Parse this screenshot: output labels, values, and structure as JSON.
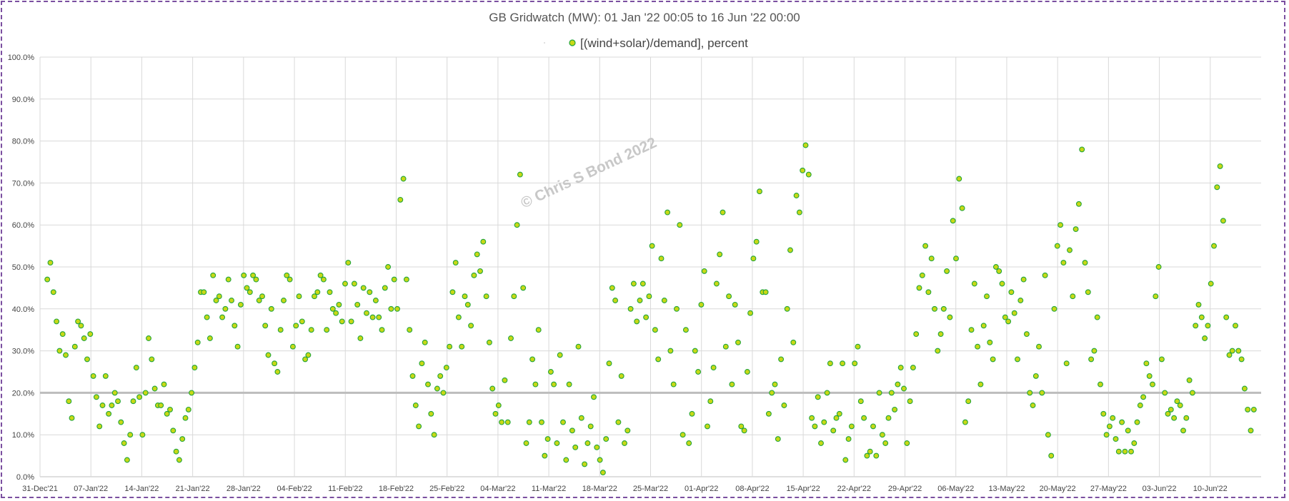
{
  "chart_data": {
    "type": "scatter",
    "title": "GB Gridwatch (MW):   01 Jan '22 00:05 to 16 Jun '22 00:00",
    "legend_placement": "top-center",
    "grid": true,
    "series": [
      {
        "name": "[(wind+solar)/demand], percent",
        "marker_fill": "#c8d816",
        "marker_edge": "#22a53a",
        "x_start": "2022-01-01",
        "x_end": "2022-06-16",
        "values": [
          47,
          51,
          44,
          37,
          30,
          34,
          29,
          18,
          14,
          31,
          37,
          36,
          33,
          28,
          34,
          24,
          19,
          12,
          17,
          24,
          15,
          17,
          20,
          18,
          13,
          8,
          4,
          10,
          18,
          26,
          19,
          10,
          20,
          33,
          28,
          21,
          17,
          17,
          22,
          15,
          16,
          11,
          6,
          4,
          9,
          14,
          16,
          20,
          26,
          32,
          44,
          44,
          38,
          33,
          48,
          42,
          43,
          38,
          40,
          47,
          42,
          36,
          31,
          41,
          48,
          45,
          44,
          48,
          47,
          42,
          43,
          36,
          29,
          40,
          27,
          25,
          35,
          42,
          48,
          47,
          31,
          36,
          43,
          37,
          28,
          29,
          35,
          43,
          44,
          48,
          47,
          35,
          44,
          40,
          39,
          41,
          37,
          46,
          51,
          37,
          46,
          41,
          33,
          45,
          39,
          44,
          38,
          42,
          38,
          35,
          45,
          50,
          40,
          47,
          40,
          66,
          71,
          47,
          35,
          24,
          17,
          12,
          27,
          32,
          22,
          15,
          10,
          21,
          24,
          20,
          26,
          31,
          44,
          51,
          38,
          31,
          43,
          41,
          36,
          48,
          53,
          49,
          56,
          43,
          32,
          21,
          15,
          17,
          13,
          23,
          13,
          33,
          43,
          60,
          72,
          45,
          8,
          13,
          28,
          22,
          35,
          13,
          5,
          9,
          25,
          22,
          8,
          29,
          13,
          4,
          22,
          11,
          7,
          31,
          14,
          3,
          8,
          12,
          19,
          7,
          4,
          1,
          9,
          27,
          45,
          42,
          13,
          24,
          8,
          11,
          40,
          46,
          37,
          42,
          46,
          38,
          43,
          55,
          35,
          28,
          52,
          42,
          63,
          30,
          22,
          40,
          60,
          10,
          35,
          8,
          15,
          30,
          25,
          41,
          49,
          12,
          18,
          26,
          46,
          53,
          63,
          31,
          43,
          22,
          41,
          32,
          12,
          11,
          25,
          39,
          52,
          56,
          68,
          44,
          44,
          15,
          20,
          22,
          9,
          28,
          17,
          40,
          54,
          32,
          67,
          63,
          73,
          79,
          72,
          14,
          12,
          19,
          8,
          13,
          20,
          27,
          11,
          14,
          15,
          27,
          4,
          9,
          12,
          27,
          31,
          18,
          14,
          5,
          6,
          12,
          5,
          20,
          10,
          8,
          14,
          20,
          16,
          22,
          26,
          21,
          8,
          18,
          26,
          34,
          45,
          48,
          55,
          44,
          52,
          40,
          30,
          34,
          40,
          49,
          38,
          61,
          52,
          71,
          64,
          13,
          18,
          35,
          46,
          31,
          22,
          36,
          43,
          32,
          28,
          50,
          49,
          46,
          38,
          37,
          44,
          39,
          28,
          42,
          47,
          34,
          20,
          17,
          24,
          31,
          20,
          48,
          10,
          5,
          40,
          55,
          60,
          51,
          27,
          54,
          43,
          59,
          65,
          78,
          51,
          44,
          28,
          30,
          38,
          22,
          15,
          10,
          12,
          14,
          9,
          6,
          13,
          6,
          11,
          6,
          8,
          13,
          17,
          19,
          27,
          24,
          22,
          43,
          50,
          28,
          20,
          15,
          16,
          14,
          18,
          17,
          11,
          14,
          23,
          20,
          36,
          41,
          38,
          33,
          36,
          46,
          55,
          69,
          74,
          61,
          38,
          29,
          30,
          36,
          30,
          28,
          21,
          16,
          11,
          16
        ]
      }
    ],
    "xlabel": "",
    "ylabel": "",
    "ylim": [
      0,
      100
    ],
    "y_ticks": [
      "0.0%",
      "10.0%",
      "20.0%",
      "30.0%",
      "40.0%",
      "50.0%",
      "60.0%",
      "70.0%",
      "80.0%",
      "90.0%",
      "100.0%"
    ],
    "x_ticks": [
      "31-Dec'21",
      "07-Jan'22",
      "14-Jan'22",
      "21-Jan'22",
      "28-Jan'22",
      "04-Feb'22",
      "11-Feb'22",
      "18-Feb'22",
      "25-Feb'22",
      "04-Mar'22",
      "11-Mar'22",
      "18-Mar'22",
      "25-Mar'22",
      "01-Apr'22",
      "08-Apr'22",
      "15-Apr'22",
      "22-Apr'22",
      "29-Apr'22",
      "06-May'22",
      "13-May'22",
      "20-May'22",
      "27-May'22",
      "03-Jun'22",
      "10-Jun'22"
    ],
    "reference_line": {
      "y": 20,
      "color": "#bdbdbd"
    },
    "annotations": [
      {
        "text": "© Chris S Bond  2022"
      }
    ],
    "colors": {
      "marker_fill": "#c8d816",
      "marker_edge": "#22a53a",
      "grid": "#d9d9d9"
    }
  }
}
